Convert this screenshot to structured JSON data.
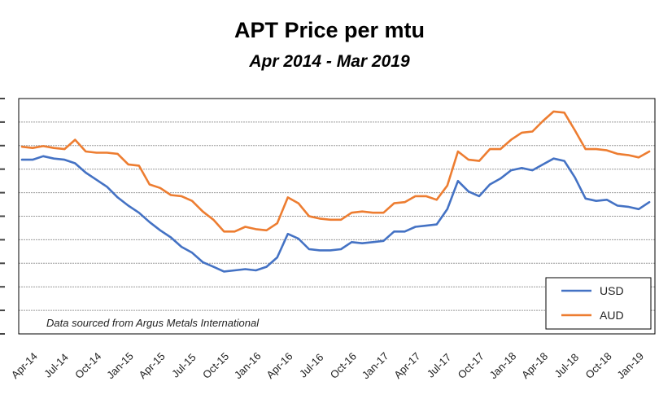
{
  "chart_data": {
    "type": "line",
    "title": "APT Price per mtu",
    "subtitle": "Apr 2014 - Mar 2019",
    "annotation": "Data sourced from Argus Metals International",
    "xlabel": "",
    "ylabel": "",
    "ylim": [
      0,
      10
    ],
    "grid": true,
    "legend": "bottom-right",
    "x_tick_labels": [
      "Apr-14",
      "Jul-14",
      "Oct-14",
      "Jan-15",
      "Apr-15",
      "Jul-15",
      "Oct-15",
      "Jan-16",
      "Apr-16",
      "Jul-16",
      "Oct-16",
      "Jan-17",
      "Apr-17",
      "Jul-17",
      "Oct-17",
      "Jan-18",
      "Apr-18",
      "Jul-18",
      "Oct-18",
      "Jan-19"
    ],
    "series": [
      {
        "name": "USD",
        "color": "#4472C4",
        "values": [
          7.4,
          7.4,
          7.55,
          7.45,
          7.4,
          7.25,
          6.85,
          6.55,
          6.25,
          5.8,
          5.45,
          5.15,
          4.75,
          4.4,
          4.1,
          3.7,
          3.45,
          3.05,
          2.85,
          2.65,
          2.7,
          2.75,
          2.7,
          2.85,
          3.25,
          4.25,
          4.05,
          3.6,
          3.55,
          3.55,
          3.6,
          3.9,
          3.85,
          3.9,
          3.95,
          4.35,
          4.35,
          4.55,
          4.6,
          4.65,
          5.3,
          6.5,
          6.05,
          5.85,
          6.35,
          6.6,
          6.95,
          7.05,
          6.95,
          7.2,
          7.45,
          7.35,
          6.65,
          5.75,
          5.65,
          5.7,
          5.45,
          5.4,
          5.3,
          5.6
        ]
      },
      {
        "name": "AUD",
        "color": "#ED7D31",
        "values": [
          7.95,
          7.9,
          7.98,
          7.9,
          7.85,
          8.25,
          7.75,
          7.7,
          7.7,
          7.65,
          7.2,
          7.15,
          6.35,
          6.2,
          5.9,
          5.85,
          5.65,
          5.2,
          4.85,
          4.35,
          4.35,
          4.55,
          4.45,
          4.4,
          4.7,
          5.8,
          5.55,
          5.0,
          4.9,
          4.85,
          4.85,
          5.15,
          5.2,
          5.15,
          5.15,
          5.55,
          5.6,
          5.85,
          5.85,
          5.7,
          6.3,
          7.75,
          7.4,
          7.35,
          7.85,
          7.85,
          8.25,
          8.55,
          8.6,
          9.05,
          9.45,
          9.4,
          8.65,
          7.85,
          7.85,
          7.8,
          7.65,
          7.6,
          7.5,
          7.75
        ]
      }
    ]
  }
}
